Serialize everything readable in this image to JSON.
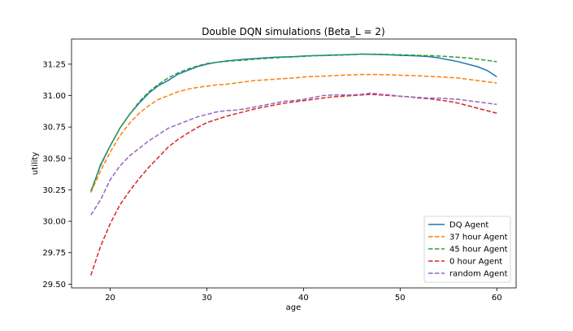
{
  "chart_data": {
    "type": "line",
    "title": "Double DQN simulations (Beta_L = 2)",
    "xlabel": "age",
    "ylabel": "utility",
    "xlim": [
      16.0,
      62.0
    ],
    "ylim": [
      29.47,
      31.45
    ],
    "xticks": [
      20,
      30,
      40,
      50,
      60
    ],
    "yticks": [
      29.5,
      29.75,
      30.0,
      30.25,
      30.5,
      30.75,
      31.0,
      31.25
    ],
    "ytick_labels": [
      "29.50",
      "29.75",
      "30.00",
      "30.25",
      "30.50",
      "30.75",
      "31.00",
      "31.25"
    ],
    "grid": false,
    "legend_position": "lower right",
    "x": [
      18,
      19,
      20,
      21,
      22,
      23,
      24,
      25,
      26,
      27,
      28,
      29,
      30,
      31,
      32,
      33,
      34,
      35,
      36,
      37,
      38,
      39,
      40,
      41,
      42,
      43,
      44,
      45,
      46,
      47,
      48,
      49,
      50,
      51,
      52,
      53,
      54,
      55,
      56,
      57,
      58,
      59,
      60
    ],
    "series": [
      {
        "name": "DQ Agent",
        "color": "#1f77b4",
        "style": "solid",
        "values": [
          30.23,
          30.45,
          30.6,
          30.74,
          30.85,
          30.94,
          31.02,
          31.08,
          31.12,
          31.17,
          31.2,
          31.23,
          31.25,
          31.265,
          31.275,
          31.283,
          31.29,
          31.295,
          31.3,
          31.305,
          31.308,
          31.31,
          31.315,
          31.318,
          31.32,
          31.323,
          31.325,
          31.327,
          31.33,
          31.328,
          31.326,
          31.324,
          31.32,
          31.318,
          31.315,
          31.31,
          31.3,
          31.285,
          31.27,
          31.25,
          31.23,
          31.2,
          31.15
        ]
      },
      {
        "name": "37 hour Agent",
        "color": "#ff7f0e",
        "style": "dashed",
        "values": [
          30.23,
          30.4,
          30.55,
          30.68,
          30.78,
          30.86,
          30.92,
          30.97,
          31.0,
          31.03,
          31.05,
          31.065,
          31.075,
          31.085,
          31.09,
          31.1,
          31.11,
          31.12,
          31.125,
          31.13,
          31.135,
          31.14,
          31.148,
          31.152,
          31.155,
          31.158,
          31.162,
          31.165,
          31.168,
          31.168,
          31.167,
          31.165,
          31.162,
          31.16,
          31.157,
          31.153,
          31.15,
          31.145,
          31.14,
          31.13,
          31.12,
          31.11,
          31.1
        ]
      },
      {
        "name": "45 hour Agent",
        "color": "#2ca02c",
        "style": "dashed",
        "values": [
          30.24,
          30.44,
          30.6,
          30.74,
          30.85,
          30.95,
          31.03,
          31.09,
          31.14,
          31.18,
          31.21,
          31.235,
          31.255,
          31.265,
          31.272,
          31.278,
          31.283,
          31.29,
          31.295,
          31.3,
          31.305,
          31.308,
          31.312,
          31.316,
          31.318,
          31.32,
          31.322,
          31.325,
          31.33,
          31.33,
          31.329,
          31.327,
          31.325,
          31.323,
          31.32,
          31.318,
          31.315,
          31.31,
          31.305,
          31.3,
          31.29,
          31.28,
          31.27
        ]
      },
      {
        "name": "0 hour Agent",
        "color": "#d62728",
        "style": "dashed",
        "values": [
          29.57,
          29.8,
          29.98,
          30.13,
          30.24,
          30.34,
          30.43,
          30.51,
          30.59,
          30.65,
          30.7,
          30.745,
          30.785,
          30.81,
          30.835,
          30.855,
          30.875,
          30.895,
          30.91,
          30.925,
          30.94,
          30.95,
          30.96,
          30.97,
          30.98,
          30.99,
          30.995,
          31.0,
          31.005,
          31.01,
          31.005,
          31.0,
          30.995,
          30.99,
          30.98,
          30.975,
          30.965,
          30.955,
          30.94,
          30.92,
          30.9,
          30.88,
          30.86
        ]
      },
      {
        "name": "random Agent",
        "color": "#9467bd",
        "style": "dashed",
        "values": [
          30.05,
          30.17,
          30.33,
          30.44,
          30.52,
          30.58,
          30.64,
          30.69,
          30.74,
          30.77,
          30.8,
          30.83,
          30.85,
          30.87,
          30.88,
          30.885,
          30.895,
          30.91,
          30.925,
          30.94,
          30.955,
          30.96,
          30.97,
          30.985,
          31.0,
          31.005,
          31.005,
          31.005,
          31.01,
          31.02,
          31.01,
          31.005,
          30.995,
          30.99,
          30.985,
          30.98,
          30.98,
          30.975,
          30.97,
          30.96,
          30.95,
          30.94,
          30.93
        ]
      }
    ]
  }
}
